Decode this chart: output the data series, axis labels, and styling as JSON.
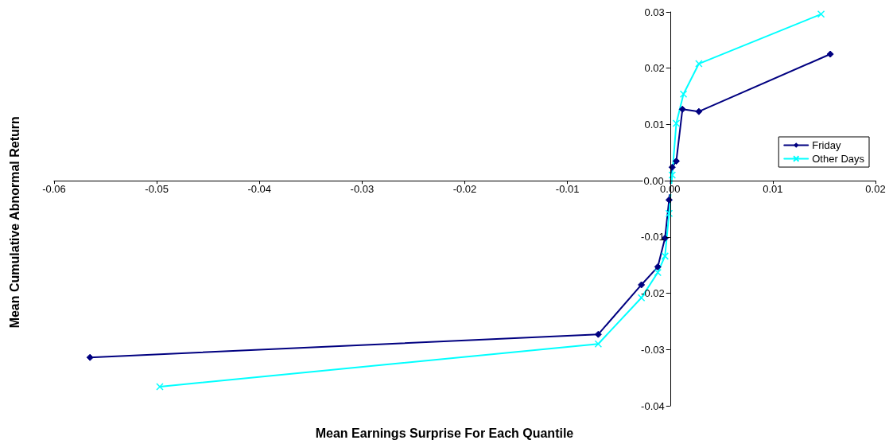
{
  "chart_data": {
    "type": "line",
    "xlabel": "Mean Earnings Surprise For Each Quantile",
    "ylabel": "Mean Cumulative Abnormal Return",
    "xlim": [
      -0.06,
      0.02
    ],
    "xticks": [
      -0.06,
      -0.05,
      -0.04,
      -0.03,
      -0.02,
      -0.01,
      {
        "value": 0,
        "label": "0.00"
      },
      0.01,
      0.02
    ],
    "ylim": [
      -0.04,
      0.03
    ],
    "yticks": [
      -0.04,
      -0.03,
      -0.02,
      -0.01,
      {
        "value": 0,
        "label": "0.00"
      },
      0.01,
      0.02,
      0.03
    ],
    "grid": false,
    "legend": "right",
    "series": [
      {
        "name": "Friday",
        "color": "#000080",
        "marker": "diamond",
        "x": [
          -0.0565,
          -0.007,
          -0.0028,
          -0.0012,
          -0.0005,
          -0.0001,
          0.0002,
          0.0006,
          0.0012,
          0.0028,
          0.0156
        ],
        "values": [
          -0.0314,
          -0.0273,
          -0.0185,
          -0.0153,
          -0.0102,
          -0.0034,
          0.0024,
          0.0035,
          0.0127,
          0.0123,
          0.0225
        ]
      },
      {
        "name": "Other Days",
        "color": "#00ffff",
        "marker": "cross",
        "x": [
          -0.0497,
          -0.007,
          -0.0028,
          -0.0012,
          -0.0005,
          -0.0001,
          0.0002,
          0.0006,
          0.0013,
          0.0028,
          0.0147
        ],
        "values": [
          -0.0366,
          -0.029,
          -0.0208,
          -0.0163,
          -0.0134,
          -0.0058,
          0.001,
          0.0102,
          0.0154,
          0.0208,
          0.0296
        ]
      }
    ]
  }
}
